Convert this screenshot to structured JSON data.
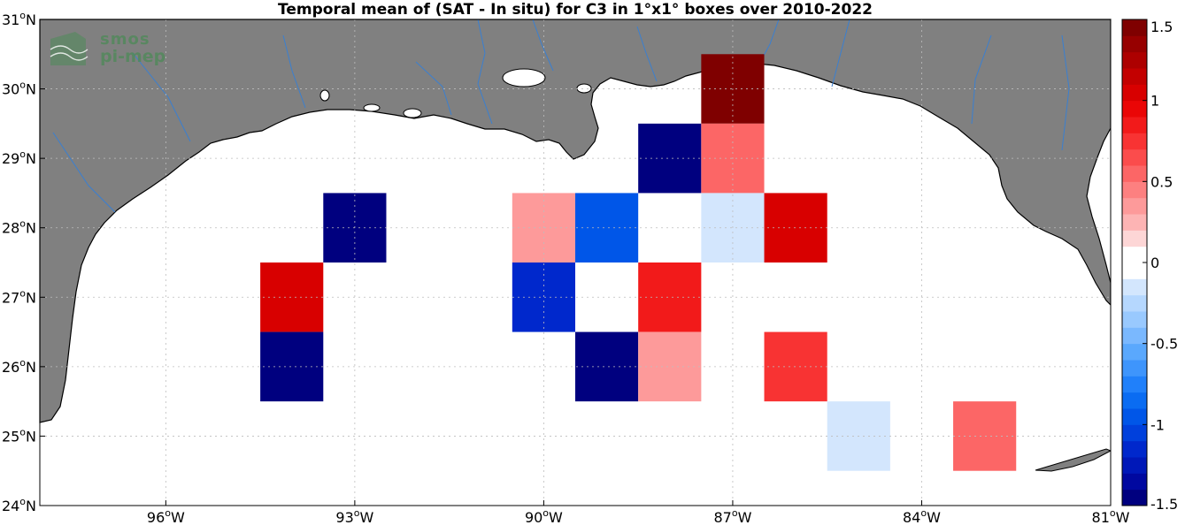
{
  "chart_data": {
    "type": "heatmap",
    "title": "Temporal mean of (SAT - In situ) for C3 in 1°x1° boxes over 2010-2022",
    "xlim": [
      -98,
      -81
    ],
    "ylim": [
      24,
      31
    ],
    "xticks": [
      {
        "value": -96,
        "deg": "96",
        "suffix": "W"
      },
      {
        "value": -93,
        "deg": "93",
        "suffix": "W"
      },
      {
        "value": -90,
        "deg": "90",
        "suffix": "W"
      },
      {
        "value": -87,
        "deg": "87",
        "suffix": "W"
      },
      {
        "value": -84,
        "deg": "84",
        "suffix": "W"
      },
      {
        "value": -81,
        "deg": "81",
        "suffix": "W"
      }
    ],
    "yticks": [
      {
        "value": 24,
        "deg": "24",
        "suffix": "N"
      },
      {
        "value": 25,
        "deg": "25",
        "suffix": "N"
      },
      {
        "value": 26,
        "deg": "26",
        "suffix": "N"
      },
      {
        "value": 27,
        "deg": "27",
        "suffix": "N"
      },
      {
        "value": 28,
        "deg": "28",
        "suffix": "N"
      },
      {
        "value": 29,
        "deg": "29",
        "suffix": "N"
      },
      {
        "value": 30,
        "deg": "30",
        "suffix": "N"
      },
      {
        "value": 31,
        "deg": "31",
        "suffix": "N"
      }
    ],
    "grid": true,
    "cells": [
      {
        "lon": -87,
        "lat": 30,
        "value": 1.5
      },
      {
        "lon": -88,
        "lat": 29,
        "value": -1.5
      },
      {
        "lon": -87,
        "lat": 29,
        "value": 0.5
      },
      {
        "lon": -93,
        "lat": 28,
        "value": -1.5
      },
      {
        "lon": -90,
        "lat": 28,
        "value": 0.3
      },
      {
        "lon": -89,
        "lat": 28,
        "value": -0.9
      },
      {
        "lon": -87,
        "lat": 28,
        "value": -0.2
      },
      {
        "lon": -86,
        "lat": 28,
        "value": 1.0
      },
      {
        "lon": -94,
        "lat": 27,
        "value": 1.0
      },
      {
        "lon": -90,
        "lat": 27,
        "value": -1.1
      },
      {
        "lon": -88,
        "lat": 27,
        "value": 0.9
      },
      {
        "lon": -94,
        "lat": 26,
        "value": -1.5
      },
      {
        "lon": -89,
        "lat": 26,
        "value": -1.5
      },
      {
        "lon": -88,
        "lat": 26,
        "value": 0.3
      },
      {
        "lon": -86,
        "lat": 26,
        "value": 0.7
      },
      {
        "lon": -85,
        "lat": 25,
        "value": -0.2
      },
      {
        "lon": -83,
        "lat": 25,
        "value": 0.55
      }
    ],
    "colorbar": {
      "min": -1.5,
      "max": 1.5,
      "ticks": [
        1.5,
        1,
        0.5,
        0,
        -0.5,
        -1,
        -1.5
      ],
      "tick_labels": [
        "1.5",
        "1",
        "0.5",
        "0",
        "-0.5",
        "-1",
        "-1.5"
      ],
      "colors": [
        "#00007f",
        "#0008a0",
        "#0018b8",
        "#0028cc",
        "#0040dc",
        "#0056e8",
        "#0a6cf2",
        "#2080fa",
        "#3e95fc",
        "#5aa8fd",
        "#7ab8fe",
        "#99c9fe",
        "#b5d7fe",
        "#d3e6fd",
        "#ffffff",
        "#ffffff",
        "#fdd6d6",
        "#fdb4b4",
        "#fd9a9a",
        "#fd8080",
        "#fc6666",
        "#fb4c4c",
        "#f83333",
        "#f21a1a",
        "#ea0606",
        "#d80000",
        "#c30000",
        "#ad0000",
        "#970000",
        "#7f0000"
      ]
    },
    "land_color": "#808080",
    "ocean_color": "#ffffff",
    "river_color": "#3a7fd0"
  },
  "logo": {
    "line1": "smos",
    "line2": "pi-mep"
  }
}
